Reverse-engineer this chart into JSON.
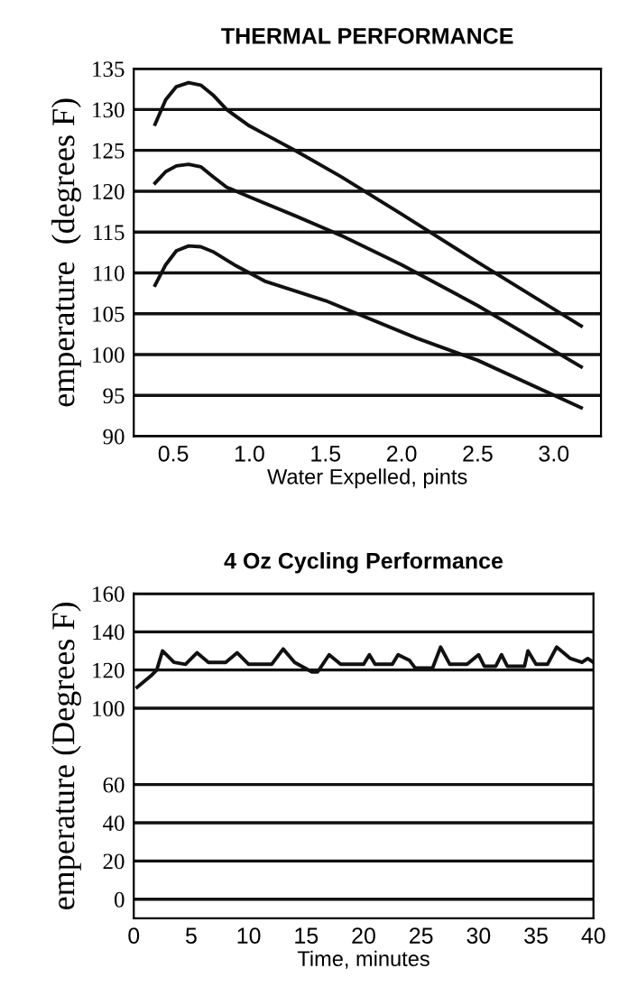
{
  "chart_data": [
    {
      "type": "line",
      "title": "THERMAL PERFORMANCE",
      "xlabel": "Water Expelled, pints",
      "ylabel": "emperature  (degrees F)",
      "series": [
        {
          "color": "#111111",
          "x": [
            0.38,
            0.45,
            0.52,
            0.6,
            0.68,
            0.76,
            0.85,
            1.0,
            1.1,
            1.3,
            1.6,
            2.0,
            2.5,
            3.18
          ],
          "values": [
            128.2,
            131.2,
            132.8,
            133.3,
            133.0,
            131.8,
            130.0,
            128.0,
            127.0,
            125.0,
            121.8,
            117.2,
            111.3,
            103.5
          ]
        },
        {
          "color": "#111111",
          "x": [
            0.38,
            0.45,
            0.52,
            0.6,
            0.68,
            0.76,
            0.85,
            1.0,
            1.3,
            1.6,
            2.0,
            2.5,
            3.18
          ],
          "values": [
            121.0,
            122.4,
            123.1,
            123.3,
            123.0,
            121.8,
            120.5,
            119.3,
            117.0,
            114.6,
            111.0,
            106.0,
            98.5
          ]
        },
        {
          "color": "#111111",
          "x": [
            0.38,
            0.45,
            0.52,
            0.6,
            0.68,
            0.76,
            0.9,
            1.1,
            1.5,
            2.1,
            2.5,
            3.18
          ],
          "values": [
            108.5,
            111.0,
            112.7,
            113.3,
            113.2,
            112.6,
            111.0,
            109.0,
            106.6,
            102.0,
            99.3,
            93.5
          ]
        }
      ],
      "xlim": [
        0.24,
        3.31
      ],
      "xticks": [
        0.5,
        {
          "value": 1,
          "label": "1.0"
        },
        1.5,
        {
          "value": 2,
          "label": "2.0"
        },
        2.5,
        {
          "value": 3,
          "label": "3.0"
        }
      ],
      "ylim": [
        90,
        135
      ],
      "yticks": [
        90,
        95,
        100,
        105,
        110,
        115,
        120,
        125,
        130,
        135
      ],
      "grid": "y",
      "marker": "none",
      "line_style": "solid"
    },
    {
      "type": "line",
      "title": "4 Oz Cycling Performance",
      "xlabel": "Time, minutes",
      "ylabel": "emperature (Degrees F)",
      "series": [
        {
          "color": "#111111",
          "x": [
            0.3,
            1.5,
            2,
            2.5,
            3.5,
            4.5,
            5.5,
            6.5,
            8,
            9,
            10,
            12,
            13,
            14,
            15.5,
            16,
            17,
            18,
            20,
            20.5,
            21,
            22.5,
            23,
            24,
            24.5,
            26,
            26.7,
            27.5,
            29,
            30,
            30.5,
            31.5,
            32,
            32.5,
            34,
            34.3,
            35,
            36,
            36.8,
            38,
            39,
            39.5,
            40
          ],
          "values": [
            111,
            117,
            120,
            130,
            124,
            123,
            129,
            124,
            124,
            129,
            123,
            123,
            131,
            124,
            119,
            119,
            128,
            123,
            123,
            128,
            123,
            123,
            128,
            125,
            121,
            121,
            132,
            123,
            123,
            128,
            122,
            122,
            128,
            122,
            122,
            130,
            123,
            123,
            132,
            126,
            124,
            126,
            124
          ]
        }
      ],
      "xlim": [
        0,
        40
      ],
      "xticks": [
        0,
        5,
        10,
        15,
        20,
        25,
        30,
        35,
        40
      ],
      "ylim": [
        -10,
        160
      ],
      "yticks": [
        160,
        140,
        120,
        100,
        60,
        40,
        20,
        0
      ],
      "grid": "y",
      "marker": "none",
      "line_style": "solid"
    }
  ]
}
